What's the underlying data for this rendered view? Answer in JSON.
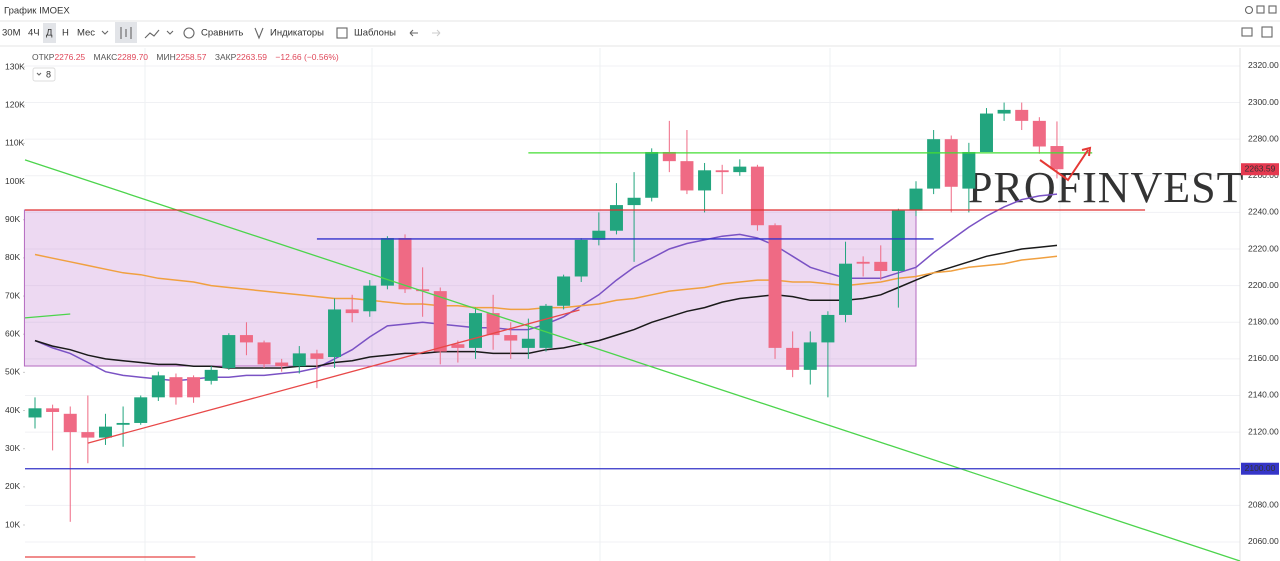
{
  "toolbar": {
    "title": "График IMOEX",
    "timeframes": [
      "30М",
      "4Ч",
      "Д",
      "Н",
      "Мес"
    ],
    "tools": [
      "Сравнить",
      "Индикаторы",
      "Шаблоны"
    ]
  },
  "chart_data": {
    "type": "candlestick",
    "ohlc_readout": [
      {
        "label": "ОТКР",
        "value": "2276.25"
      },
      {
        "label": "МАКС",
        "value": "2289.70"
      },
      {
        "label": "МИН",
        "value": "2258.57"
      },
      {
        "label": "ЗАКР",
        "value": "2263.59"
      }
    ],
    "change": "−12.66 (−0.56%)",
    "indicator_count": "8",
    "up_color": "#22a57e",
    "down_color": "#ef6a84",
    "open": [
      2128,
      2133,
      2130,
      2120,
      2117,
      2124,
      2125,
      2139,
      2150,
      2150,
      2148,
      2155,
      2173,
      2169,
      2158,
      2156,
      2163,
      2161,
      2187,
      2186,
      2200,
      2226,
      2198,
      2197,
      2168,
      2166,
      2185,
      2173,
      2166,
      2166,
      2189,
      2205,
      2225,
      2230,
      2244,
      2248,
      2273,
      2268,
      2252,
      2263,
      2262,
      2265,
      2233,
      2166,
      2154,
      2169,
      2184,
      2213,
      2213,
      2208,
      2241,
      2253,
      2280,
      2253,
      2273,
      2294,
      2296,
      2290,
      2276.25
    ],
    "high": [
      2139,
      2135,
      2134,
      2140,
      2130,
      2134,
      2140,
      2153,
      2152,
      2151,
      2156,
      2174,
      2180,
      2170,
      2160,
      2167,
      2165,
      2193,
      2195,
      2203,
      2227,
      2228,
      2210,
      2199,
      2170,
      2188,
      2195,
      2180,
      2182,
      2190,
      2206,
      2226,
      2240,
      2256,
      2262,
      2275,
      2290,
      2285,
      2267,
      2266,
      2269,
      2266,
      2234,
      2175,
      2175,
      2186,
      2224,
      2216,
      2222,
      2242,
      2257,
      2285,
      2282,
      2278,
      2297,
      2300,
      2300,
      2292,
      2289.7
    ],
    "low": [
      2122,
      2110,
      2071,
      2103,
      2113,
      2112,
      2124,
      2137,
      2135,
      2136,
      2146,
      2154,
      2162,
      2155,
      2153,
      2152,
      2144,
      2155,
      2180,
      2183,
      2198,
      2196,
      2183,
      2157,
      2158,
      2160,
      2165,
      2160,
      2160,
      2164,
      2187,
      2202,
      2222,
      2228,
      2213,
      2246,
      2262,
      2250,
      2240,
      2250,
      2260,
      2230,
      2160,
      2150,
      2146,
      2139,
      2180,
      2205,
      2203,
      2188,
      2238,
      2250,
      2240,
      2240,
      2273,
      2290,
      2285,
      2272,
      2258.57
    ],
    "close": [
      2133,
      2131,
      2120,
      2117,
      2123,
      2125,
      2139,
      2151,
      2139,
      2139,
      2154,
      2173,
      2169,
      2157,
      2156,
      2163,
      2160,
      2187,
      2185,
      2200,
      2226,
      2198,
      2197,
      2164,
      2166,
      2185,
      2173,
      2170,
      2171,
      2189,
      2205,
      2225,
      2230,
      2244,
      2248,
      2273,
      2268,
      2252,
      2263,
      2262,
      2265,
      2233,
      2166,
      2154,
      2169,
      2184,
      2212,
      2212,
      2208,
      2241,
      2253,
      2280,
      2254,
      2273,
      2294,
      2296,
      2290,
      2276,
      2263.59
    ],
    "lines": [
      {
        "color": "#7a52c4",
        "values": [
          2170,
          2166,
          2163,
          2158,
          2153,
          2151,
          2150,
          2149,
          2148,
          2149,
          2150,
          2150,
          2151,
          2151,
          2152,
          2153,
          2155,
          2160,
          2165,
          2172,
          2178,
          2179,
          2180,
          2179,
          2178,
          2177,
          2177,
          2176,
          2176,
          2179,
          2183,
          2189,
          2195,
          2203,
          2210,
          2215,
          2220,
          2223,
          2225,
          2227,
          2228,
          2226,
          2222,
          2216,
          2210,
          2207,
          2204,
          2204,
          2204,
          2207,
          2210,
          2218,
          2225,
          2232,
          2238,
          2243,
          2247,
          2249,
          2250
        ]
      },
      {
        "color": "#1a1a1a",
        "values": [
          2170,
          2167,
          2165,
          2162,
          2160,
          2159,
          2158,
          2157,
          2157,
          2156,
          2156,
          2155,
          2155,
          2155,
          2155,
          2156,
          2156,
          2158,
          2159,
          2161,
          2162,
          2163,
          2163,
          2164,
          2164,
          2164,
          2163,
          2163,
          2163,
          2165,
          2166,
          2168,
          2170,
          2173,
          2176,
          2180,
          2183,
          2186,
          2188,
          2191,
          2193,
          2194,
          2195,
          2194,
          2192,
          2192,
          2192,
          2193,
          2195,
          2199,
          2203,
          2207,
          2210,
          2213,
          2216,
          2218,
          2220,
          2221,
          2222
        ]
      },
      {
        "color": "#f0a040",
        "values": [
          2217,
          2215,
          2213,
          2211,
          2209,
          2207,
          2206,
          2204,
          2203,
          2202,
          2200,
          2199,
          2198,
          2197,
          2196,
          2195,
          2194,
          2193,
          2193,
          2192,
          2191,
          2190,
          2190,
          2189,
          2189,
          2188,
          2188,
          2187,
          2187,
          2188,
          2188,
          2189,
          2190,
          2192,
          2193,
          2195,
          2197,
          2198,
          2199,
          2201,
          2202,
          2203,
          2203,
          2202,
          2202,
          2201,
          2200,
          2201,
          2202,
          2204,
          2205,
          2207,
          2208,
          2210,
          2211,
          2212,
          2214,
          2215,
          2216
        ]
      }
    ],
    "drawings": [
      {
        "kind": "rect",
        "color": "#b46ac0",
        "fill": "rgba(190,120,210,0.28)",
        "x": [
          -0.6,
          50
        ],
        "price": [
          2156.1,
          2241.3
        ]
      },
      {
        "kind": "line",
        "color": "#4cd44c",
        "x": [
          -0.6,
          68.4
        ],
        "price": [
          2268.7,
          2049.6
        ]
      },
      {
        "kind": "line",
        "color": "#e84848",
        "x": [
          3,
          30.9
        ],
        "price": [
          2114,
          2186.7
        ]
      },
      {
        "kind": "line",
        "color": "#4cd44c",
        "x": [
          -0.6,
          2
        ],
        "price": [
          2182.4,
          2184.5
        ]
      },
      {
        "kind": "line",
        "color": "#44dd33",
        "x": [
          28,
          60
        ],
        "price": [
          2272.5,
          2272.5
        ]
      },
      {
        "kind": "line",
        "color": "#e03030",
        "x": [
          -0.6,
          63
        ],
        "price": [
          2241.3,
          2241.3
        ]
      },
      {
        "kind": "line",
        "color": "#3333cc",
        "x": [
          16,
          51
        ],
        "price": [
          2225.5,
          2225.5
        ]
      },
      {
        "kind": "line",
        "color": "#3535c8",
        "x": [
          -0.6,
          68.4
        ],
        "price": [
          2100,
          2100
        ],
        "label": "2100.00"
      },
      {
        "kind": "line",
        "color": "#e84848",
        "x": [
          -0.6,
          9.1
        ],
        "price": [
          2051.8,
          2051.8
        ]
      }
    ],
    "last_price_label": "2263.59",
    "watermark": "PROFINVEST",
    "ylim": [
      2049.6,
      2329.8
    ],
    "yticks": [
      {
        "value": 2060,
        "label": "2060.00"
      },
      {
        "value": 2080,
        "label": "2080.00"
      },
      {
        "value": 2100,
        "label": "2100.00"
      },
      {
        "value": 2120,
        "label": "2120.00"
      },
      {
        "value": 2140,
        "label": "2140.00"
      },
      {
        "value": 2160,
        "label": "2160.00"
      },
      {
        "value": 2180,
        "label": "2180.00"
      },
      {
        "value": 2200,
        "label": "2200.00"
      },
      {
        "value": 2220,
        "label": "2220.00"
      },
      {
        "value": 2240,
        "label": "2240.00"
      },
      {
        "value": 2260,
        "label": "2260.00"
      },
      {
        "value": 2280,
        "label": "2280.00"
      },
      {
        "value": 2300,
        "label": "2300.00"
      },
      {
        "value": 2320,
        "label": "2320.00"
      }
    ],
    "y2lim": [
      570,
      135000
    ],
    "y2ticks": [
      {
        "value": 10000,
        "label": "10K"
      },
      {
        "value": 20000,
        "label": "20K"
      },
      {
        "value": 30000,
        "label": "30K"
      },
      {
        "value": 40000,
        "label": "40K"
      },
      {
        "value": 50000,
        "label": "50K"
      },
      {
        "value": 60000,
        "label": "60K"
      },
      {
        "value": 70000,
        "label": "70K"
      },
      {
        "value": 80000,
        "label": "80K"
      },
      {
        "value": 90000,
        "label": "90K"
      },
      {
        "value": 100000,
        "label": "100K"
      },
      {
        "value": 110000,
        "label": "110K"
      },
      {
        "value": 120000,
        "label": "120K"
      },
      {
        "value": 130000,
        "label": "130K"
      }
    ],
    "grid": true
  }
}
